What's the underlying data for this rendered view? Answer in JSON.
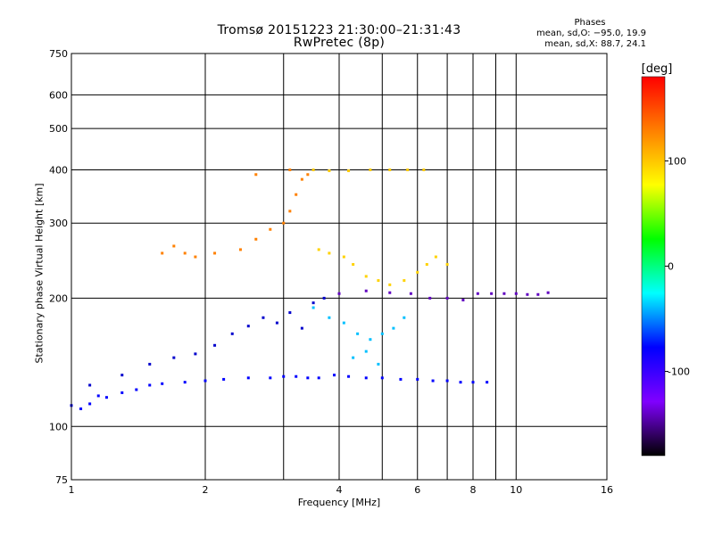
{
  "chart_data": {
    "type": "scatter",
    "title": "Tromsø 20151223 21:30:00–21:31:43",
    "subtitle": "RwPretec (8p)",
    "xlabel": "Frequency [MHz]",
    "ylabel": "Stationary phase Virtual Height [km]",
    "x_scale": "log",
    "y_scale": "log",
    "xlim": [
      1,
      16
    ],
    "ylim": [
      75,
      750
    ],
    "x_ticks": [
      1,
      2,
      4,
      6,
      8,
      10,
      16
    ],
    "y_ticks": [
      75,
      100,
      200,
      300,
      400,
      500,
      600,
      750
    ],
    "x_gridlines": [
      2,
      3,
      4,
      5,
      6,
      7,
      8,
      9,
      10
    ],
    "y_gridlines": [
      100,
      200,
      300,
      400,
      500,
      600
    ],
    "grid": true,
    "phases_box": {
      "heading": "Phases",
      "line1": "mean, sd,O: −95.0, 19.9",
      "line2": "mean, sd,X:  88.7, 24.1"
    },
    "colorbar": {
      "unit": "[deg]",
      "range": [
        -180,
        180
      ],
      "ticks": [
        100,
        0,
        -100
      ],
      "colors": [
        "#000000",
        "#8000ff",
        "#0000ff",
        "#00ffff",
        "#00ff00",
        "#ffff00",
        "#ff8000",
        "#ff0000"
      ]
    },
    "series": [
      {
        "values": [
          [
            1.0,
            112
          ],
          [
            1.05,
            110
          ],
          [
            1.1,
            113
          ],
          [
            1.15,
            118
          ],
          [
            1.2,
            117
          ],
          [
            1.3,
            120
          ],
          [
            1.4,
            122
          ],
          [
            1.5,
            125
          ],
          [
            1.6,
            126
          ],
          [
            1.8,
            127
          ],
          [
            2.0,
            128
          ],
          [
            2.2,
            129
          ],
          [
            2.5,
            130
          ],
          [
            2.8,
            130
          ],
          [
            3.0,
            131
          ],
          [
            3.2,
            131
          ],
          [
            3.4,
            130
          ],
          [
            3.6,
            130
          ],
          [
            3.9,
            132
          ],
          [
            4.2,
            131
          ],
          [
            4.6,
            130
          ],
          [
            5.0,
            130
          ],
          [
            5.5,
            129
          ],
          [
            6.0,
            129
          ],
          [
            6.5,
            128
          ],
          [
            7.0,
            128
          ],
          [
            7.5,
            127
          ],
          [
            8.0,
            127
          ],
          [
            8.6,
            127
          ]
        ]
      },
      {
        "values": [
          [
            1.1,
            125
          ],
          [
            1.3,
            132
          ],
          [
            1.5,
            140
          ],
          [
            1.7,
            145
          ],
          [
            1.9,
            148
          ],
          [
            2.1,
            155
          ],
          [
            2.3,
            165
          ],
          [
            2.5,
            172
          ],
          [
            2.7,
            180
          ],
          [
            2.9,
            175
          ],
          [
            3.1,
            185
          ],
          [
            3.3,
            170
          ],
          [
            3.5,
            195
          ],
          [
            3.7,
            200
          ]
        ]
      },
      {
        "values": [
          [
            1.6,
            255
          ],
          [
            1.7,
            265
          ],
          [
            1.8,
            255
          ],
          [
            1.9,
            250
          ],
          [
            2.1,
            255
          ],
          [
            2.4,
            260
          ],
          [
            2.6,
            275
          ],
          [
            2.8,
            290
          ],
          [
            3.0,
            300
          ],
          [
            3.1,
            320
          ],
          [
            3.2,
            350
          ],
          [
            3.3,
            380
          ],
          [
            3.4,
            390
          ],
          [
            3.1,
            400
          ],
          [
            2.6,
            390
          ]
        ]
      },
      {
        "values": [
          [
            3.6,
            260
          ],
          [
            3.8,
            255
          ],
          [
            4.1,
            250
          ],
          [
            4.3,
            240
          ],
          [
            4.6,
            225
          ],
          [
            4.9,
            220
          ],
          [
            5.2,
            215
          ],
          [
            5.6,
            220
          ],
          [
            6.0,
            230
          ],
          [
            6.3,
            240
          ],
          [
            6.6,
            250
          ],
          [
            7.0,
            240
          ]
        ]
      },
      {
        "values": [
          [
            3.5,
            190
          ],
          [
            3.8,
            180
          ],
          [
            4.1,
            175
          ],
          [
            4.4,
            165
          ],
          [
            4.7,
            160
          ],
          [
            5.0,
            165
          ],
          [
            5.3,
            170
          ],
          [
            5.6,
            180
          ],
          [
            4.3,
            145
          ],
          [
            4.6,
            150
          ],
          [
            4.9,
            140
          ]
        ]
      },
      {
        "values": [
          [
            4.0,
            205
          ],
          [
            4.6,
            208
          ],
          [
            5.2,
            206
          ],
          [
            5.8,
            205
          ],
          [
            6.4,
            200
          ],
          [
            7.0,
            200
          ],
          [
            7.6,
            198
          ],
          [
            8.2,
            205
          ],
          [
            8.8,
            205
          ],
          [
            9.4,
            205
          ],
          [
            10.0,
            205
          ],
          [
            10.6,
            204
          ],
          [
            11.2,
            204
          ],
          [
            11.8,
            206
          ]
        ]
      },
      {
        "values": [
          [
            3.5,
            400
          ],
          [
            3.8,
            398
          ],
          [
            4.2,
            398
          ],
          [
            4.7,
            400
          ],
          [
            5.2,
            400
          ],
          [
            5.7,
            400
          ],
          [
            6.2,
            400
          ]
        ]
      }
    ]
  }
}
